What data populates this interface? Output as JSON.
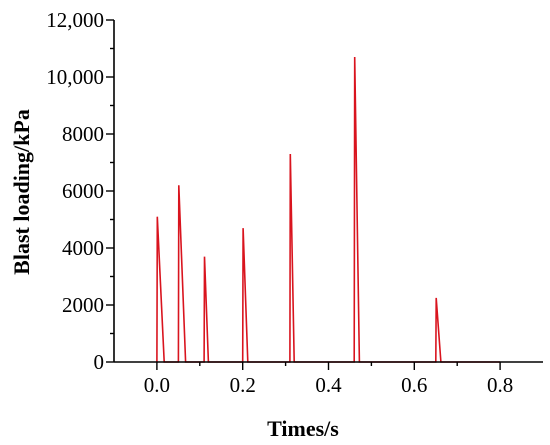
{
  "chart_data": {
    "type": "line",
    "xlabel": "Times/s",
    "ylabel": "Blast loading/kPa",
    "xlim": [
      -0.1,
      0.9
    ],
    "ylim": [
      0,
      12000
    ],
    "x_ticks": [
      0.0,
      0.2,
      0.4,
      0.6,
      0.8
    ],
    "x_tick_labels": [
      "0.0",
      "0.2",
      "0.4",
      "0.6",
      "0.8"
    ],
    "y_ticks": [
      0,
      2000,
      4000,
      6000,
      8000,
      10000,
      12000
    ],
    "y_tick_labels": [
      "0",
      "2000",
      "4000",
      "6000",
      "8000",
      "10,000",
      "12,000"
    ],
    "grid": false,
    "color": "#d9141e",
    "series": [
      {
        "x": [
          0.0,
          0.001,
          0.017,
          0.05,
          0.051,
          0.067,
          0.11,
          0.111,
          0.12,
          0.2,
          0.201,
          0.212,
          0.31,
          0.311,
          0.32,
          0.46,
          0.461,
          0.472,
          0.65,
          0.651,
          0.662,
          0.8
        ],
        "y": [
          0,
          5100,
          0,
          0,
          6200,
          0,
          0,
          3700,
          0,
          0,
          4700,
          0,
          0,
          7300,
          0,
          0,
          10700,
          0,
          0,
          2250,
          0,
          0
        ]
      }
    ]
  }
}
